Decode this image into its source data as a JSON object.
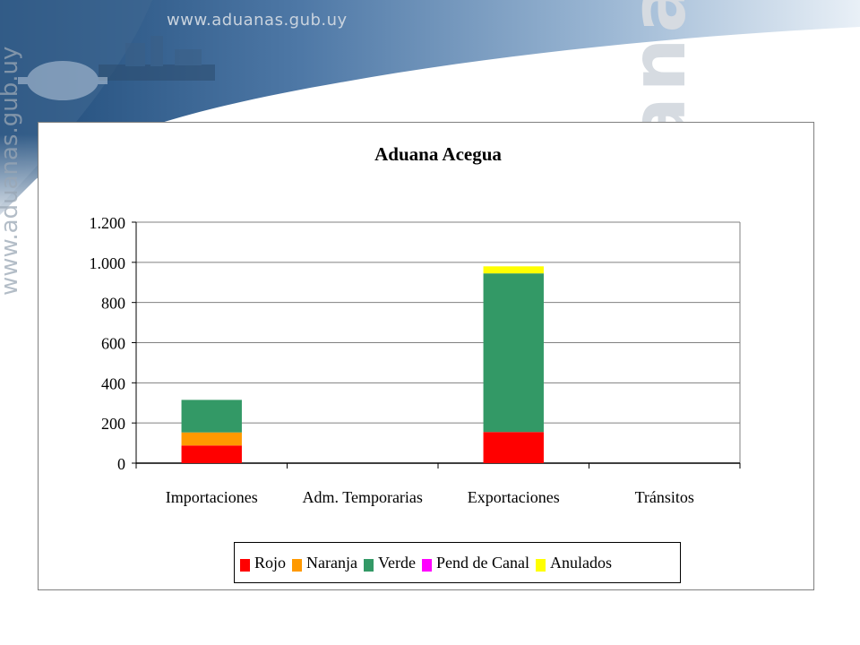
{
  "banner": {
    "url": "www.aduanas.gub.uy",
    "brand": "Aduanas",
    "side_url": "www.aduanas.gub.uy"
  },
  "chart_data": {
    "type": "bar",
    "stacked": true,
    "title": "Aduana Acegua",
    "categories": [
      "Importaciones",
      "Adm. Temporarias",
      "Exportaciones",
      "Tránsitos"
    ],
    "series": [
      {
        "name": "Rojo",
        "color": "#ff0000",
        "values": [
          88,
          0,
          155,
          0
        ]
      },
      {
        "name": "Naranja",
        "color": "#ff9900",
        "values": [
          65,
          0,
          0,
          0
        ]
      },
      {
        "name": "Verde",
        "color": "#339966",
        "values": [
          162,
          0,
          790,
          0
        ]
      },
      {
        "name": "Pend de Canal",
        "color": "#ff00ff",
        "values": [
          0,
          0,
          0,
          0
        ]
      },
      {
        "name": "Anulados",
        "color": "#ffff00",
        "values": [
          0,
          0,
          35,
          0
        ]
      }
    ],
    "ylim": [
      0,
      1200
    ],
    "yticks": [
      0,
      200,
      400,
      600,
      800,
      1000,
      1200
    ],
    "ytick_labels": [
      "0",
      "200",
      "400",
      "600",
      "800",
      "1.000",
      "1.200"
    ],
    "grid": true,
    "legend": "bottom"
  }
}
